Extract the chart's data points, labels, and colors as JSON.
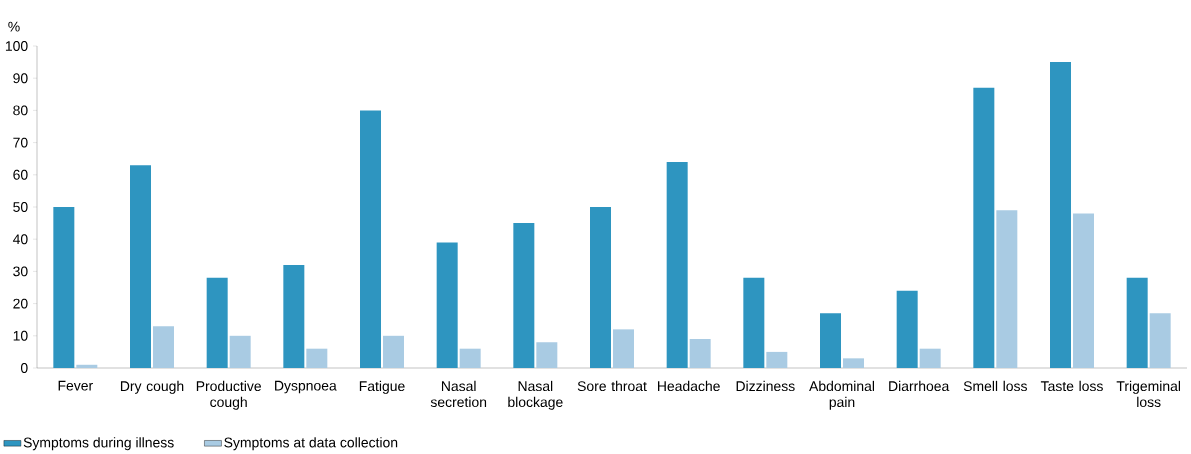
{
  "chart_data": {
    "type": "bar",
    "ylabel": "%",
    "categories": [
      "Fever",
      "Dry cough",
      "Productive cough",
      "Dyspnoea",
      "Fatigue",
      "Nasal secretion",
      "Nasal blockage",
      "Sore throat",
      "Headache",
      "Dizziness",
      "Abdominal pain",
      "Diarrhoea",
      "Smell loss",
      "Taste loss",
      "Trigeminal loss"
    ],
    "series": [
      {
        "name": "Symptoms during illness",
        "color": "#2e95c0",
        "values": [
          50,
          63,
          28,
          32,
          80,
          39,
          45,
          50,
          64,
          28,
          17,
          24,
          87,
          95,
          28
        ]
      },
      {
        "name": "Symptoms at data collection",
        "color": "#a9cbe3",
        "values": [
          1,
          13,
          10,
          6,
          10,
          6,
          8,
          12,
          9,
          5,
          3,
          6,
          49,
          48,
          17
        ]
      }
    ],
    "ylim": [
      0,
      100
    ],
    "yticks": [
      0,
      10,
      20,
      30,
      40,
      50,
      60,
      70,
      80,
      90,
      100
    ],
    "grid": false,
    "legend": "bottom"
  }
}
